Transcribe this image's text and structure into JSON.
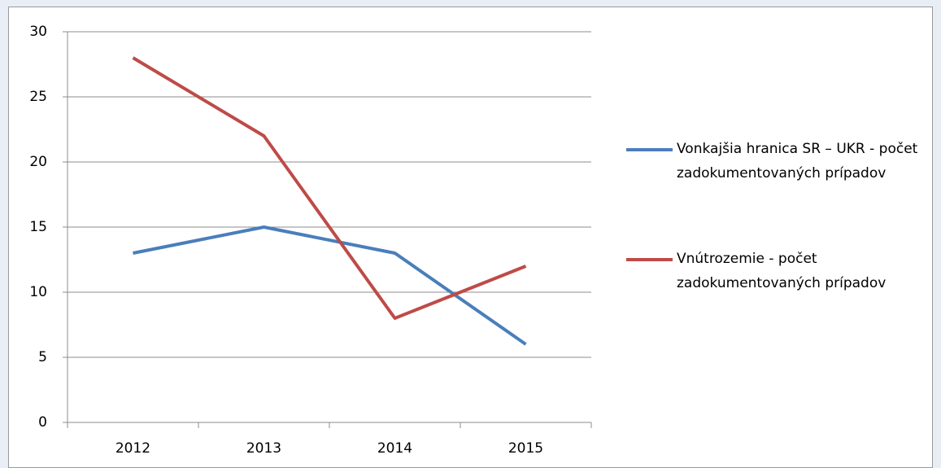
{
  "chart_data": {
    "type": "line",
    "categories": [
      "2012",
      "2013",
      "2014",
      "2015"
    ],
    "series": [
      {
        "name": "Vonkajšia hranica SR – UKR - počet zadokumentovaných prípadov",
        "color": "#4a7ebb",
        "values": [
          13,
          15,
          13,
          6
        ]
      },
      {
        "name": "Vnútrozemie - počet zadokumentovaných prípadov",
        "color": "#be4b48",
        "values": [
          28,
          22,
          8,
          12
        ]
      }
    ],
    "ylim": [
      0,
      30
    ],
    "yticks": [
      0,
      5,
      10,
      15,
      20,
      25,
      30
    ],
    "grid": true,
    "legend": "right"
  }
}
